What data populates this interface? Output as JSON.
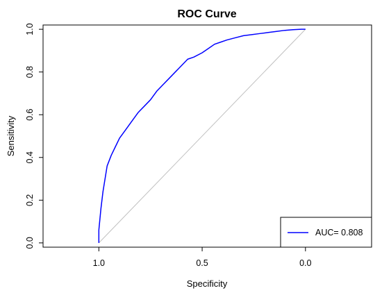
{
  "chart_data": {
    "type": "line",
    "title": "ROC Curve",
    "xlabel": "Specificity",
    "ylabel": "Sensitivity",
    "xlim": [
      1.27,
      -0.32
    ],
    "ylim": [
      -0.02,
      1.02
    ],
    "x_reversed": true,
    "x_ticks": [
      1.0,
      0.5,
      0.0
    ],
    "x_tick_labels": [
      "1.0",
      "0.5",
      "0.0"
    ],
    "y_ticks": [
      0.0,
      0.2,
      0.4,
      0.6,
      0.8,
      1.0
    ],
    "y_tick_labels": [
      "0.0",
      "0.2",
      "0.4",
      "0.6",
      "0.8",
      "1.0"
    ],
    "grid": false,
    "legend_position": "bottom-right",
    "series": [
      {
        "name": "AUC= 0.808",
        "color": "#0000ff",
        "x": [
          1.0,
          1.0,
          0.99,
          0.98,
          0.97,
          0.96,
          0.94,
          0.92,
          0.9,
          0.87,
          0.84,
          0.81,
          0.78,
          0.75,
          0.72,
          0.69,
          0.66,
          0.63,
          0.6,
          0.57,
          0.54,
          0.5,
          0.47,
          0.44,
          0.41,
          0.38,
          0.34,
          0.3,
          0.26,
          0.22,
          0.18,
          0.14,
          0.1,
          0.06,
          0.02,
          0.0
        ],
        "y": [
          0.0,
          0.06,
          0.16,
          0.24,
          0.3,
          0.36,
          0.41,
          0.45,
          0.49,
          0.53,
          0.57,
          0.61,
          0.64,
          0.67,
          0.71,
          0.74,
          0.77,
          0.8,
          0.83,
          0.86,
          0.87,
          0.89,
          0.91,
          0.93,
          0.94,
          0.95,
          0.96,
          0.97,
          0.975,
          0.98,
          0.985,
          0.99,
          0.995,
          0.998,
          1.0,
          1.0
        ]
      },
      {
        "color": "#c0c0c0",
        "x": [
          1.0,
          0.0
        ],
        "y": [
          0.0,
          1.0
        ]
      }
    ],
    "legend": [
      {
        "label": "AUC= 0.808",
        "color": "#0000ff"
      }
    ]
  }
}
